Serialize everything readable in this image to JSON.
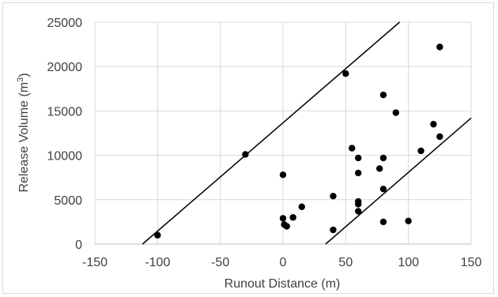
{
  "chart_data": {
    "type": "scatter",
    "title": "",
    "xlabel": "Runout Distance (m)",
    "ylabel_main": "Release Volume (m",
    "ylabel_sup": "3",
    "ylabel_end": ")",
    "xlim": [
      -150,
      150
    ],
    "ylim": [
      0,
      25000
    ],
    "x_ticks": [
      -150,
      -100,
      -50,
      0,
      50,
      100,
      150
    ],
    "y_ticks": [
      0,
      5000,
      10000,
      15000,
      20000,
      25000
    ],
    "x_tick_labels": [
      "-150",
      "-100",
      "-50",
      "0",
      "50",
      "100",
      "150"
    ],
    "y_tick_labels": [
      "0",
      "5000",
      "10000",
      "15000",
      "20000",
      "25000"
    ],
    "grid": true,
    "legend": "none",
    "marker_color": "#000000",
    "points": [
      {
        "x": -100,
        "y": 1000
      },
      {
        "x": -30,
        "y": 10100
      },
      {
        "x": 0,
        "y": 7800
      },
      {
        "x": 0,
        "y": 2900
      },
      {
        "x": 1,
        "y": 2200
      },
      {
        "x": 3,
        "y": 2000
      },
      {
        "x": 8,
        "y": 3000
      },
      {
        "x": 15,
        "y": 4200
      },
      {
        "x": 40,
        "y": 5400
      },
      {
        "x": 40,
        "y": 1600
      },
      {
        "x": 50,
        "y": 19200
      },
      {
        "x": 55,
        "y": 10800
      },
      {
        "x": 60,
        "y": 9700
      },
      {
        "x": 60,
        "y": 8000
      },
      {
        "x": 60,
        "y": 4800
      },
      {
        "x": 60,
        "y": 4500
      },
      {
        "x": 60,
        "y": 3700
      },
      {
        "x": 77,
        "y": 8500
      },
      {
        "x": 80,
        "y": 16800
      },
      {
        "x": 80,
        "y": 9700
      },
      {
        "x": 80,
        "y": 6200
      },
      {
        "x": 80,
        "y": 2500
      },
      {
        "x": 90,
        "y": 14800
      },
      {
        "x": 100,
        "y": 2600
      },
      {
        "x": 110,
        "y": 10500
      },
      {
        "x": 120,
        "y": 13500
      },
      {
        "x": 125,
        "y": 22200
      },
      {
        "x": 125,
        "y": 12100
      }
    ],
    "envelope_lines": [
      {
        "x1": -112,
        "y1": 0,
        "x2": 93,
        "y2": 25000
      },
      {
        "x1": 34,
        "y1": 0,
        "x2": 150,
        "y2": 14200
      }
    ]
  }
}
